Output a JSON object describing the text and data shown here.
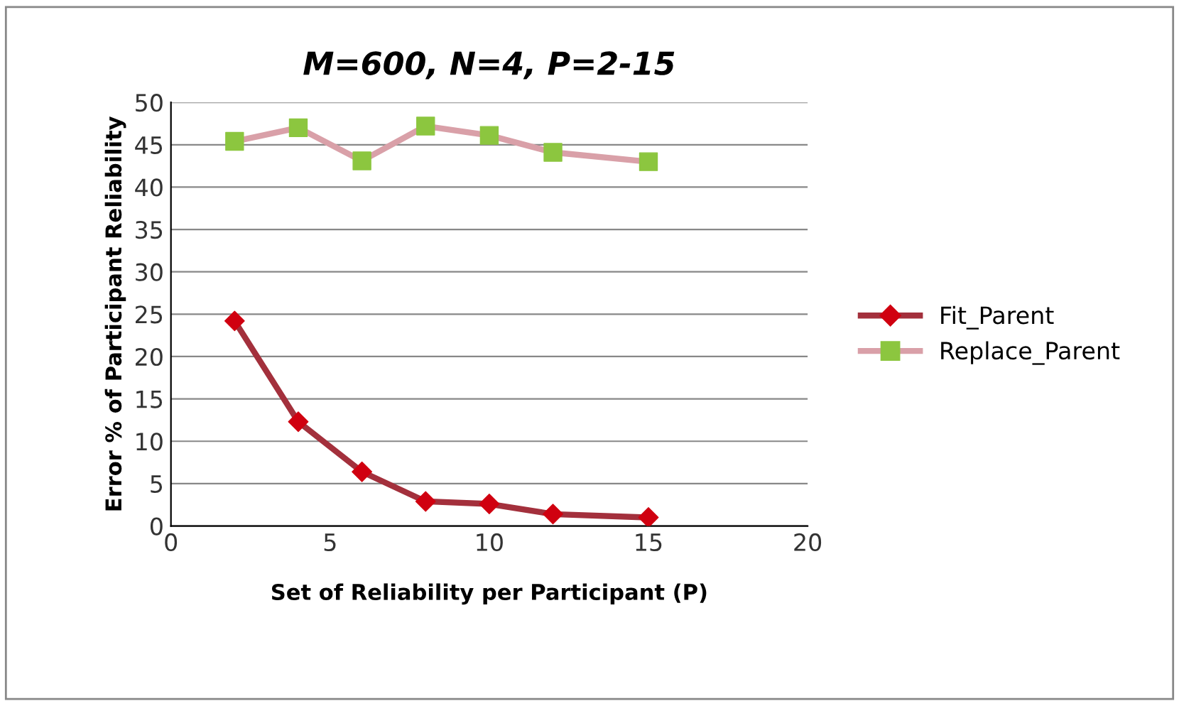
{
  "chart_data": {
    "type": "line",
    "title": "M=600, N=4, P=2-15",
    "xlabel": "Set of Reliability per Participant (P)",
    "ylabel": "Error % of Participant Reliability",
    "xlim": [
      0,
      20
    ],
    "xticks": [
      0,
      5,
      10,
      15,
      20
    ],
    "ylim": [
      0,
      50
    ],
    "yticks": [
      0,
      5,
      10,
      15,
      20,
      25,
      30,
      35,
      40,
      45,
      50
    ],
    "grid": "y",
    "legend": "right",
    "series": [
      {
        "name": "Fit_Parent",
        "color": "#a3303c",
        "colors": [
          "#d00010",
          "#d00010",
          "#d00010",
          "#d00010",
          "#d00010",
          "#d00010",
          "#d00010"
        ],
        "marker": "diamond",
        "x": [
          2,
          4,
          6,
          8,
          10,
          12,
          15
        ],
        "values": [
          24.2,
          12.3,
          6.4,
          2.9,
          2.6,
          1.4,
          1.0
        ]
      },
      {
        "name": "Replace_Parent",
        "color": "#d9a0a8",
        "colors": [
          "#8cc63f",
          "#8cc63f",
          "#8cc63f",
          "#8cc63f",
          "#8cc63f",
          "#8cc63f",
          "#8cc63f"
        ],
        "marker": "square",
        "x": [
          2,
          4,
          6,
          8,
          10,
          12,
          15
        ],
        "values": [
          45.4,
          47.0,
          43.1,
          47.2,
          46.1,
          44.1,
          43.0
        ]
      }
    ]
  }
}
